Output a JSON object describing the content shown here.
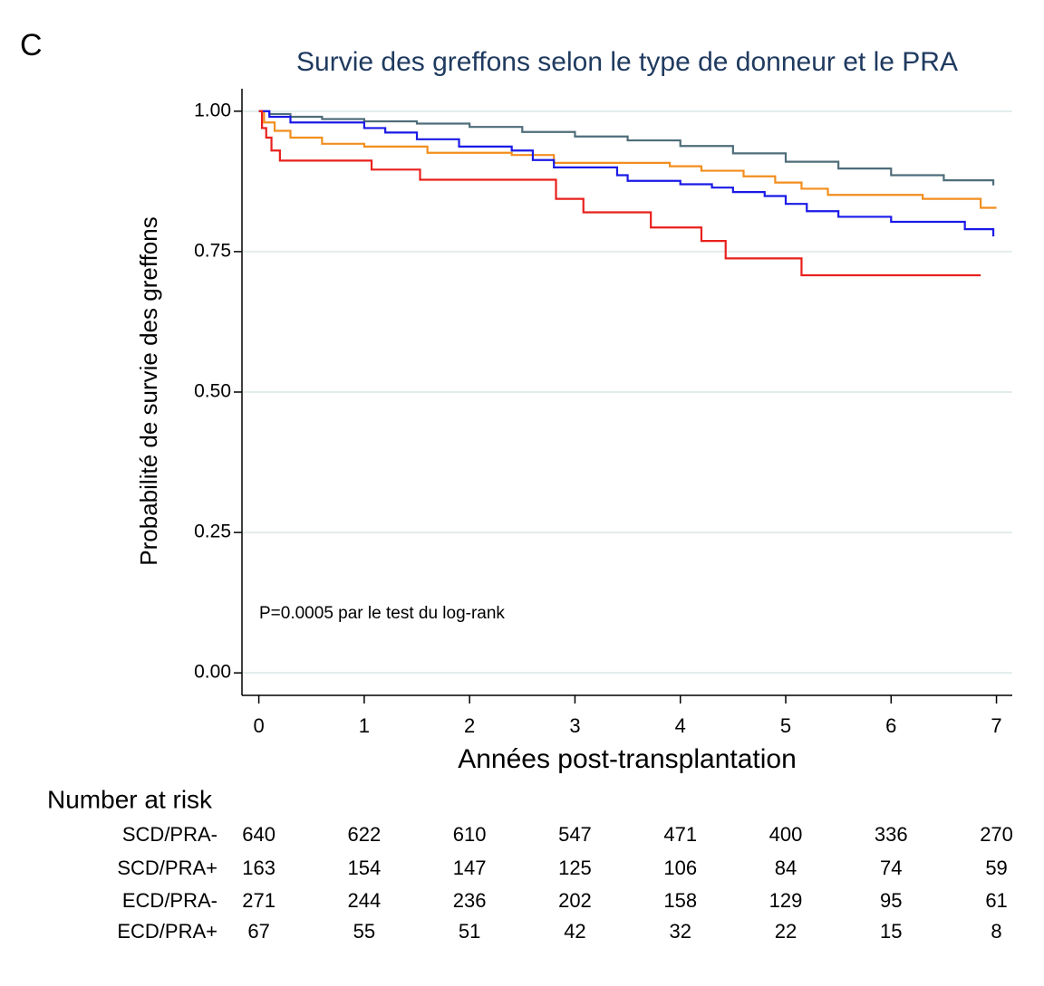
{
  "panel_label": "C",
  "chart_data": {
    "type": "step",
    "title": "Survie des greffons selon le type de donneur et le PRA",
    "x_label": "Années post-transplantation",
    "y_label": "Probabilité de survie des greffons",
    "annotation": "P=0.0005 par le test du log-rank",
    "xlim": [
      -0.16,
      7.15
    ],
    "ylim": [
      -0.04,
      1.04
    ],
    "xticks": [
      0,
      1,
      2,
      3,
      4,
      5,
      6,
      7
    ],
    "yticks": [
      {
        "value": 0,
        "label": "0.00"
      },
      {
        "value": 0.25,
        "label": "0.25"
      },
      {
        "value": 0.5,
        "label": "0.50"
      },
      {
        "value": 0.75,
        "label": "0.75"
      },
      {
        "value": 1,
        "label": "1.00"
      }
    ],
    "grid": true,
    "series": [
      {
        "name": "SCD/PRA-",
        "color": "#4f6d7a",
        "x": [
          0,
          0.1,
          0.3,
          0.6,
          1.0,
          1.5,
          2.0,
          2.5,
          3.0,
          3.5,
          4.0,
          4.5,
          5.0,
          5.5,
          6.0,
          6.5,
          6.97
        ],
        "values": [
          1.0,
          0.995,
          0.99,
          0.986,
          0.982,
          0.978,
          0.972,
          0.963,
          0.955,
          0.948,
          0.938,
          0.925,
          0.91,
          0.898,
          0.886,
          0.877,
          0.868
        ]
      },
      {
        "name": "SCD/PRA+",
        "color": "#f28e1e",
        "x": [
          0,
          0.05,
          0.15,
          0.3,
          0.6,
          1.0,
          1.6,
          2.4,
          2.8,
          3.9,
          4.2,
          4.6,
          4.9,
          5.15,
          5.4,
          6.3,
          6.85,
          7.0
        ],
        "values": [
          1.0,
          0.98,
          0.965,
          0.953,
          0.942,
          0.937,
          0.926,
          0.922,
          0.908,
          0.902,
          0.894,
          0.884,
          0.873,
          0.862,
          0.851,
          0.844,
          0.828,
          0.828
        ]
      },
      {
        "name": "ECD/PRA-",
        "color": "#1a1ae6",
        "x": [
          0,
          0.1,
          0.3,
          1.0,
          1.2,
          1.5,
          1.9,
          2.4,
          2.6,
          2.8,
          3.4,
          3.5,
          4.0,
          4.3,
          4.5,
          4.8,
          5.0,
          5.2,
          5.5,
          6.0,
          6.7,
          6.97
        ],
        "values": [
          1.0,
          0.99,
          0.98,
          0.97,
          0.962,
          0.95,
          0.937,
          0.93,
          0.913,
          0.9,
          0.886,
          0.876,
          0.87,
          0.864,
          0.856,
          0.849,
          0.835,
          0.822,
          0.812,
          0.803,
          0.79,
          0.777
        ]
      },
      {
        "name": "ECD/PRA+",
        "color": "#e8201c",
        "x": [
          0,
          0.03,
          0.07,
          0.12,
          0.2,
          1.07,
          1.53,
          2.82,
          3.08,
          3.72,
          4.2,
          4.43,
          5.15,
          6.85
        ],
        "values": [
          1.0,
          0.97,
          0.953,
          0.93,
          0.912,
          0.896,
          0.878,
          0.844,
          0.82,
          0.793,
          0.769,
          0.738,
          0.708,
          0.708
        ]
      }
    ],
    "risk_table": {
      "title": "Number at risk",
      "rows": [
        {
          "label": "SCD/PRA-",
          "values": [
            640,
            622,
            610,
            547,
            471,
            400,
            336,
            270
          ]
        },
        {
          "label": "SCD/PRA+",
          "values": [
            163,
            154,
            147,
            125,
            106,
            84,
            74,
            59
          ]
        },
        {
          "label": "ECD/PRA-",
          "values": [
            271,
            244,
            236,
            202,
            158,
            129,
            95,
            61
          ]
        },
        {
          "label": "ECD/PRA+",
          "values": [
            67,
            55,
            51,
            42,
            32,
            22,
            15,
            8
          ]
        }
      ]
    }
  }
}
